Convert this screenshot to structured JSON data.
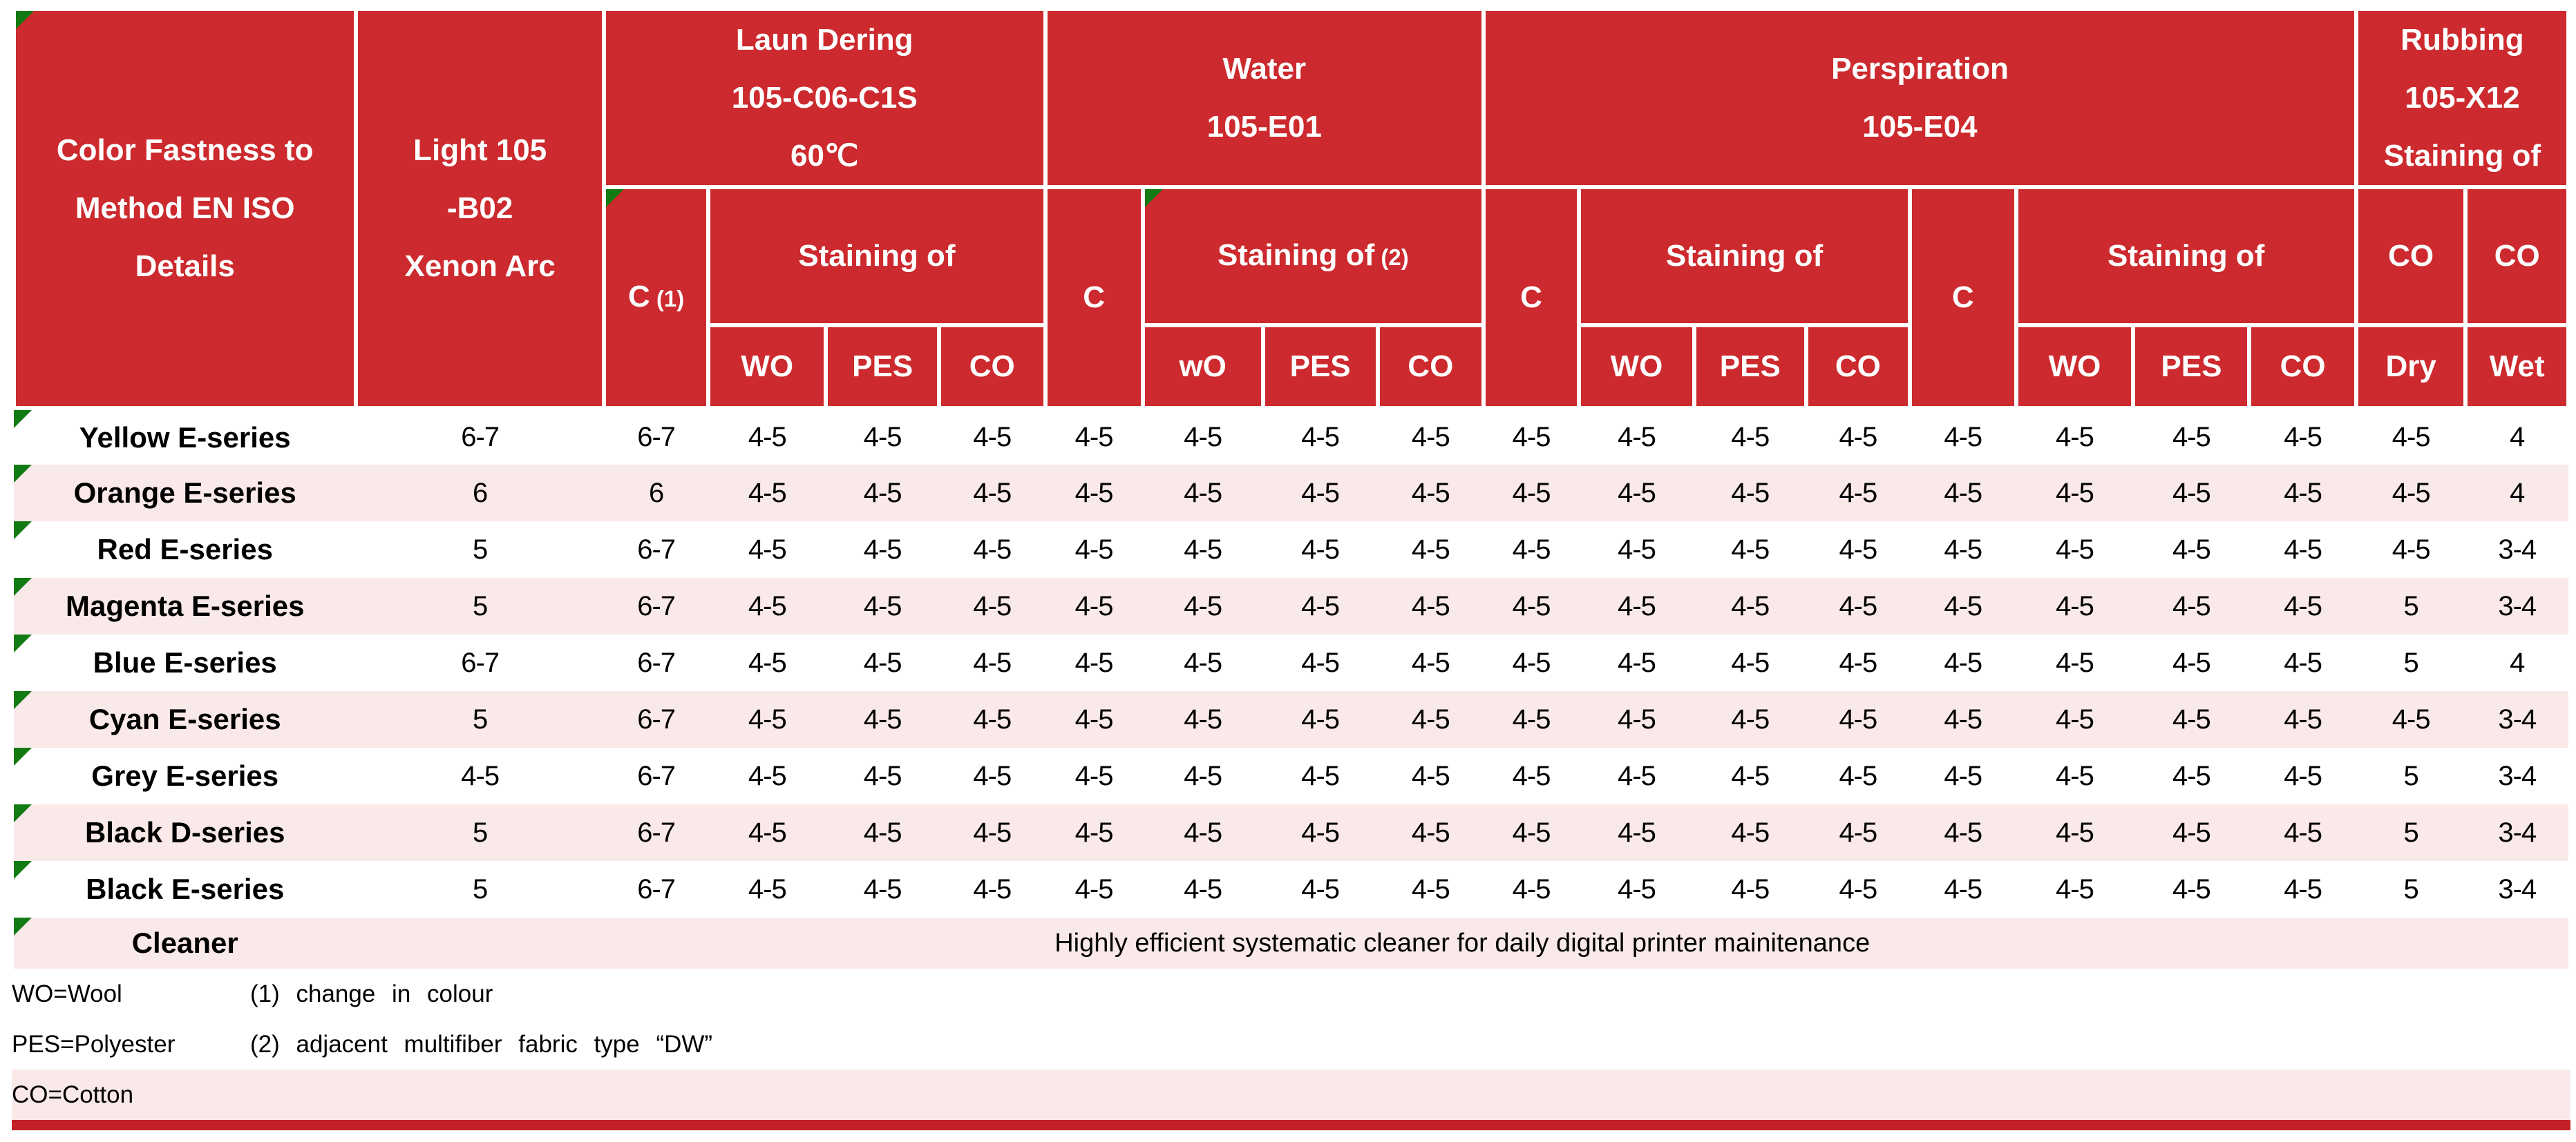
{
  "colors": {
    "red": "#CC2A2E",
    "pink": "#FAE9E9",
    "green": "#127A12",
    "bar_red": "#C32127"
  },
  "header": {
    "details": "Color Fastness to\nMethod EN ISO\nDetails",
    "light": "Light 105\n-B02\nXenon Arc",
    "laundering": {
      "title": "Laun Dering\n105-C06-C1S\n60℃",
      "c": "C",
      "c_note": " (1)",
      "staining": "Staining of",
      "subs": [
        "WO",
        "PES",
        "CO"
      ]
    },
    "water": {
      "title": "Water\n105-E01",
      "c": "C",
      "staining": "Staining of",
      "staining_note": " (2)",
      "subs": [
        "wO",
        "PES",
        "CO"
      ]
    },
    "perspiration": {
      "title": "Perspiration\n105-E04",
      "set1": {
        "c": "C",
        "staining": "Staining of",
        "subs": [
          "WO",
          "PES",
          "CO"
        ]
      },
      "set2": {
        "c": "C",
        "staining": "Staining of",
        "subs": [
          "WO",
          "PES",
          "CO"
        ]
      }
    },
    "rubbing": {
      "title": "Rubbing\n105-X12\nStaining of",
      "co_dry": "CO",
      "co_wet": "CO",
      "dry": "Dry",
      "wet": "Wet"
    }
  },
  "rows": [
    {
      "label": "Yellow E-series",
      "values": [
        "6-7",
        "6-7",
        "4-5",
        "4-5",
        "4-5",
        "4-5",
        "4-5",
        "4-5",
        "4-5",
        "4-5",
        "4-5",
        "4-5",
        "4-5",
        "4-5",
        "4-5",
        "4-5",
        "4-5",
        "4-5",
        "4"
      ]
    },
    {
      "label": "Orange E-series",
      "values": [
        "6",
        "6",
        "4-5",
        "4-5",
        "4-5",
        "4-5",
        "4-5",
        "4-5",
        "4-5",
        "4-5",
        "4-5",
        "4-5",
        "4-5",
        "4-5",
        "4-5",
        "4-5",
        "4-5",
        "4-5",
        "4"
      ]
    },
    {
      "label": "Red E-series",
      "values": [
        "5",
        "6-7",
        "4-5",
        "4-5",
        "4-5",
        "4-5",
        "4-5",
        "4-5",
        "4-5",
        "4-5",
        "4-5",
        "4-5",
        "4-5",
        "4-5",
        "4-5",
        "4-5",
        "4-5",
        "4-5",
        "3-4"
      ]
    },
    {
      "label": "Magenta E-series",
      "values": [
        "5",
        "6-7",
        "4-5",
        "4-5",
        "4-5",
        "4-5",
        "4-5",
        "4-5",
        "4-5",
        "4-5",
        "4-5",
        "4-5",
        "4-5",
        "4-5",
        "4-5",
        "4-5",
        "4-5",
        "5",
        "3-4"
      ]
    },
    {
      "label": "Blue E-series",
      "values": [
        "6-7",
        "6-7",
        "4-5",
        "4-5",
        "4-5",
        "4-5",
        "4-5",
        "4-5",
        "4-5",
        "4-5",
        "4-5",
        "4-5",
        "4-5",
        "4-5",
        "4-5",
        "4-5",
        "4-5",
        "5",
        "4"
      ]
    },
    {
      "label": "Cyan E-series",
      "values": [
        "5",
        "6-7",
        "4-5",
        "4-5",
        "4-5",
        "4-5",
        "4-5",
        "4-5",
        "4-5",
        "4-5",
        "4-5",
        "4-5",
        "4-5",
        "4-5",
        "4-5",
        "4-5",
        "4-5",
        "4-5",
        "3-4"
      ]
    },
    {
      "label": "Grey E-series",
      "values": [
        "4-5",
        "6-7",
        "4-5",
        "4-5",
        "4-5",
        "4-5",
        "4-5",
        "4-5",
        "4-5",
        "4-5",
        "4-5",
        "4-5",
        "4-5",
        "4-5",
        "4-5",
        "4-5",
        "4-5",
        "5",
        "3-4"
      ]
    },
    {
      "label": "Black D-series",
      "values": [
        "5",
        "6-7",
        "4-5",
        "4-5",
        "4-5",
        "4-5",
        "4-5",
        "4-5",
        "4-5",
        "4-5",
        "4-5",
        "4-5",
        "4-5",
        "4-5",
        "4-5",
        "4-5",
        "4-5",
        "5",
        "3-4"
      ]
    },
    {
      "label": "Black E-series",
      "values": [
        "5",
        "6-7",
        "4-5",
        "4-5",
        "4-5",
        "4-5",
        "4-5",
        "4-5",
        "4-5",
        "4-5",
        "4-5",
        "4-5",
        "4-5",
        "4-5",
        "4-5",
        "4-5",
        "4-5",
        "5",
        "3-4"
      ]
    }
  ],
  "cleaner": {
    "label": "Cleaner",
    "description": "Highly efficient systematic cleaner for daily digital printer mainitenance"
  },
  "footnotes": {
    "wo": "WO=Wool",
    "pes": "PES=Polyester",
    "co": "CO=Cotton",
    "note1": "(1) change  in colour",
    "note2": "(2) adjacent  multifiber  fabric  type  “DW”"
  }
}
